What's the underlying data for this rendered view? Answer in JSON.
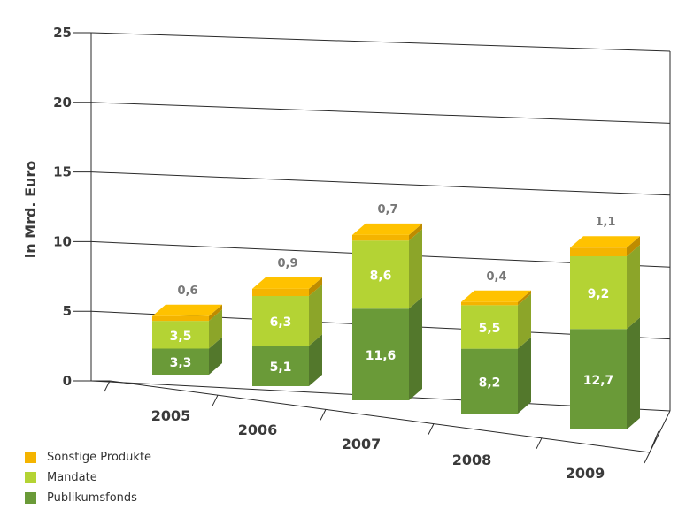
{
  "chart_data": {
    "type": "bar",
    "stacked": true,
    "three_d": true,
    "ylabel": "in Mrd. Euro",
    "ylim": [
      0,
      25
    ],
    "yticks": [
      0,
      5,
      10,
      15,
      20,
      25
    ],
    "categories": [
      "2005",
      "2006",
      "2007",
      "2008",
      "2009"
    ],
    "series": [
      {
        "name": "Publikumsfonds",
        "values": [
          3.3,
          5.1,
          11.6,
          8.2,
          12.7
        ],
        "labels": [
          "3,3",
          "5,1",
          "11,6",
          "8,2",
          "12,7"
        ]
      },
      {
        "name": "Mandate",
        "values": [
          3.5,
          6.3,
          8.6,
          5.5,
          9.2
        ],
        "labels": [
          "3,5",
          "6,3",
          "8,6",
          "5,5",
          "9,2"
        ]
      },
      {
        "name": "Sonstige Produkte",
        "values": [
          0.6,
          0.9,
          0.7,
          0.4,
          1.1
        ],
        "labels": [
          "0,6",
          "0,9",
          "0,7",
          "0,4",
          "1,1"
        ]
      }
    ],
    "colors": {
      "Publikumsfonds": "#6a9a38",
      "Mandate": "#b4d334",
      "Sonstige Produkte": "#f4b400"
    },
    "grid": true,
    "legend_position": "bottom-left"
  },
  "legend": {
    "items": [
      {
        "label": "Sonstige Produkte",
        "color": "#f4b400"
      },
      {
        "label": "Mandate",
        "color": "#b4d334"
      },
      {
        "label": "Publikumsfonds",
        "color": "#6a9a38"
      }
    ]
  }
}
